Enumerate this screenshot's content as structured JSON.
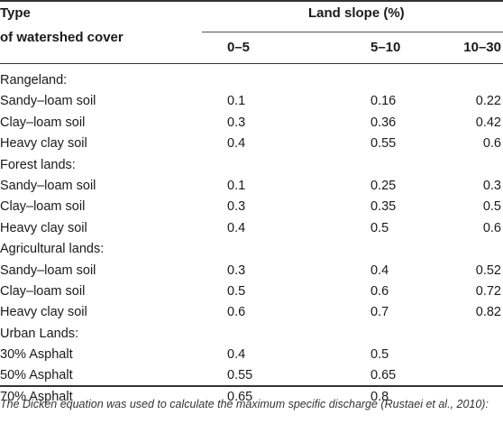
{
  "header": {
    "type_line1": "Type",
    "type_line2": "of watershed cover",
    "slope_title": "Land slope (%)",
    "columns": [
      "0–5",
      "5–10",
      "10–30"
    ]
  },
  "rows": [
    {
      "label": "Rangeland:",
      "v": [
        "",
        "",
        ""
      ]
    },
    {
      "label": "Sandy–loam soil",
      "v": [
        "0.1",
        "0.16",
        "0.22"
      ]
    },
    {
      "label": "Clay–loam soil",
      "v": [
        "0.3",
        "0.36",
        "0.42"
      ]
    },
    {
      "label": "Heavy clay soil",
      "v": [
        "0.4",
        "0.55",
        "0.6"
      ]
    },
    {
      "label": "Forest lands:",
      "v": [
        "",
        "",
        ""
      ]
    },
    {
      "label": "Sandy–loam soil",
      "v": [
        "0.1",
        "0.25",
        "0.3"
      ]
    },
    {
      "label": "Clay–loam soil",
      "v": [
        "0.3",
        "0.35",
        "0.5"
      ]
    },
    {
      "label": "Heavy clay soil",
      "v": [
        "0.4",
        "0.5",
        "0.6"
      ]
    },
    {
      "label": "Agricultural lands:",
      "v": [
        "",
        "",
        ""
      ]
    },
    {
      "label": "Sandy–loam soil",
      "v": [
        "0.3",
        "0.4",
        "0.52"
      ]
    },
    {
      "label": "Clay–loam soil",
      "v": [
        "0.5",
        "0.6",
        "0.72"
      ]
    },
    {
      "label": "Heavy clay soil",
      "v": [
        "0.6",
        "0.7",
        "0.82"
      ]
    },
    {
      "label": "Urban Lands:",
      "v": [
        "",
        "",
        ""
      ]
    },
    {
      "label": "30% Asphalt",
      "v": [
        "0.4",
        "0.5",
        ""
      ]
    },
    {
      "label": "50% Asphalt",
      "v": [
        "0.55",
        "0.65",
        ""
      ]
    },
    {
      "label": "70% Asphalt",
      "v": [
        "0.65",
        "0.8",
        ""
      ]
    }
  ],
  "note": "The Dicken equation was used to calculate the maximum specific discharge (Rustaei et al., 2010):"
}
